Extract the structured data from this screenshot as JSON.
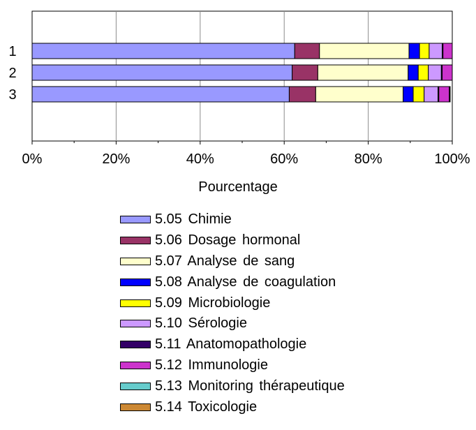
{
  "chart_data": {
    "type": "bar",
    "orientation": "horizontal",
    "stacked": true,
    "percent": true,
    "categories": [
      "1",
      "2",
      "3"
    ],
    "xlabel": "Pourcentage",
    "xticks": [
      "0%",
      "20%",
      "40%",
      "60%",
      "80%",
      "100%"
    ],
    "xlim": [
      0,
      100
    ],
    "grid": true,
    "legend_position": "bottom",
    "series": [
      {
        "name": "5.05 Chimie",
        "color": "#9999ff",
        "values": [
          62.5,
          61.9,
          61.2
        ]
      },
      {
        "name": "5.06 Dosage hormonal",
        "color": "#993366",
        "values": [
          5.9,
          6.1,
          6.3
        ]
      },
      {
        "name": "5.07 Analyse de sang",
        "color": "#ffffcc",
        "values": [
          21.3,
          21.5,
          20.8
        ]
      },
      {
        "name": "5.08 Analyse de coagulation",
        "color": "#0000ff",
        "values": [
          2.5,
          2.4,
          2.4
        ]
      },
      {
        "name": "5.09 Microbiologie",
        "color": "#ffff00",
        "values": [
          2.3,
          2.4,
          2.6
        ]
      },
      {
        "name": "5.10 Sérologie",
        "color": "#cc99ff",
        "values": [
          3.1,
          3.1,
          3.3
        ]
      },
      {
        "name": "5.11 Anatomopathologie",
        "color": "#330066",
        "values": [
          0.2,
          0.2,
          0.2
        ]
      },
      {
        "name": "5.12 Immunologie",
        "color": "#cc33cc",
        "values": [
          2.2,
          2.4,
          2.5
        ]
      },
      {
        "name": "5.13 Monitoring thérapeutique",
        "color": "#66cccc",
        "values": [
          0,
          0,
          0.1
        ]
      },
      {
        "name": "5.14 Toxicologie",
        "color": "#cc8833",
        "values": [
          0,
          0,
          0.1
        ]
      }
    ]
  }
}
